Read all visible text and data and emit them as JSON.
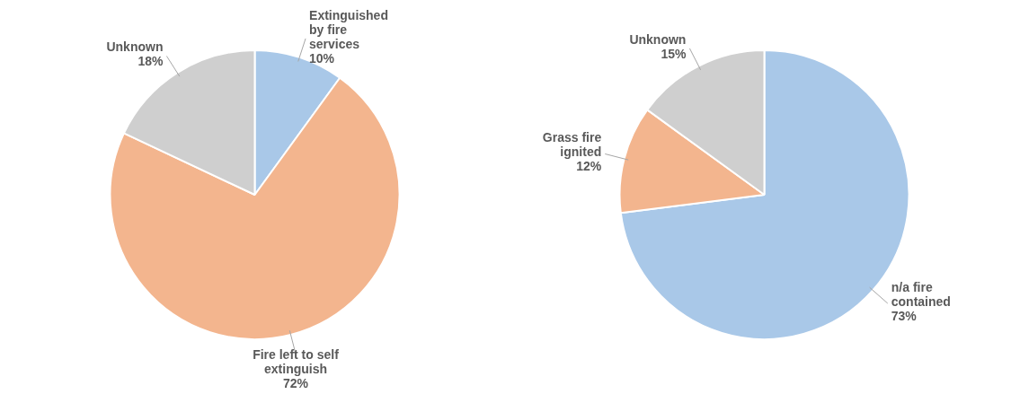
{
  "chart_data": [
    {
      "type": "pie",
      "categories": [
        "Extinguished by fire services",
        "Fire left to self extinguish",
        "Unknown"
      ],
      "values": [
        10,
        72,
        18
      ],
      "value_labels": [
        "10%",
        "72%",
        "18%"
      ],
      "colors": [
        "#a9c8e8",
        "#f3b58e",
        "#cfcfcf"
      ],
      "legend": false
    },
    {
      "type": "pie",
      "categories": [
        "n/a fire contained",
        "Grass fire ignited",
        "Unknown"
      ],
      "values": [
        73,
        12,
        15
      ],
      "value_labels": [
        "73%",
        "12%",
        "15%"
      ],
      "colors": [
        "#a9c8e8",
        "#f3b58e",
        "#cfcfcf"
      ],
      "legend": false
    }
  ]
}
